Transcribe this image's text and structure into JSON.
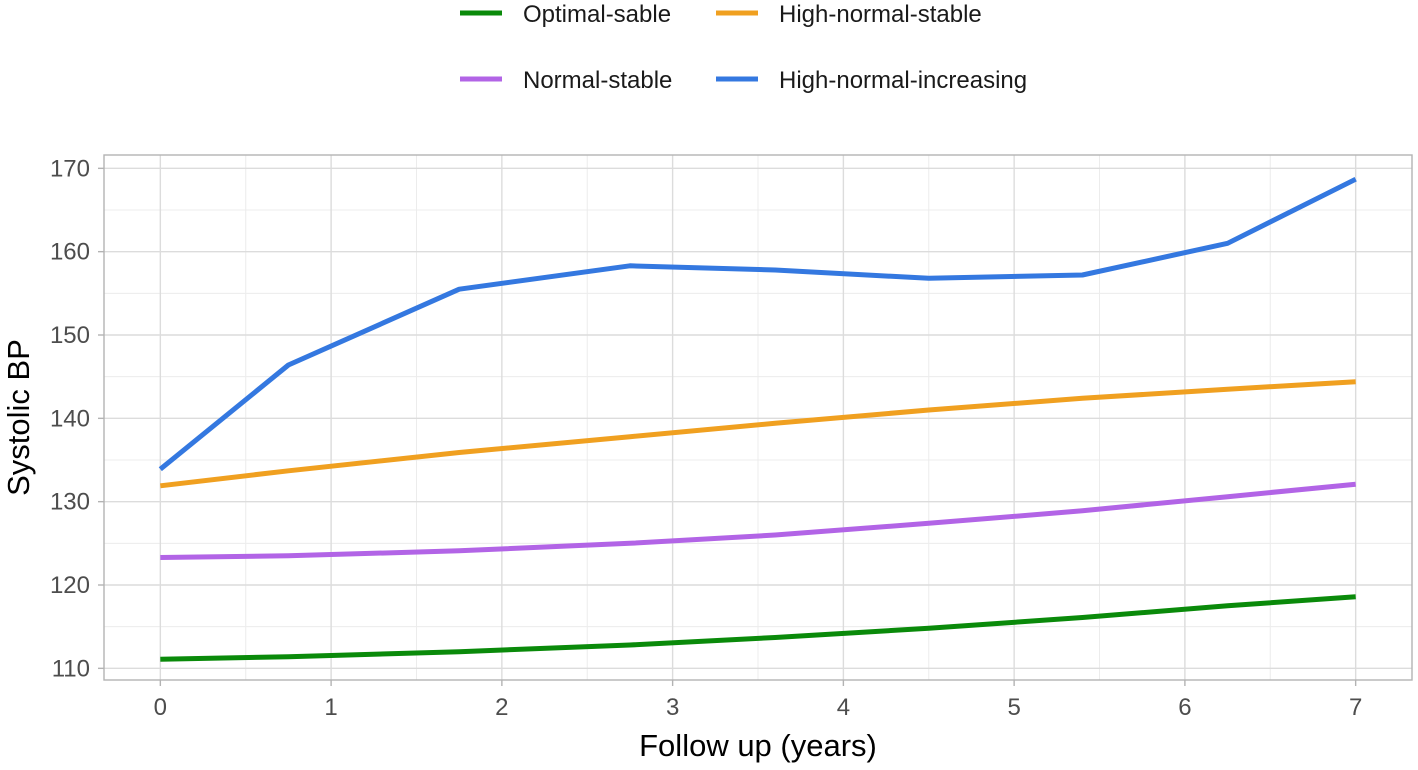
{
  "chart_data": {
    "type": "line",
    "xlabel": "Follow up (years)",
    "ylabel": "Systolic BP",
    "xlim": [
      -0.33,
      7.33
    ],
    "ylim": [
      108.6,
      171.6
    ],
    "x_ticks": [
      0,
      1,
      2,
      3,
      4,
      5,
      6,
      7
    ],
    "y_ticks": [
      110,
      120,
      130,
      140,
      150,
      160,
      170
    ],
    "grid": true,
    "legend_position": "top",
    "legend_order": [
      "Optimal-sable",
      "High-normal-stable",
      "Normal-stable",
      "High-normal-increasing"
    ],
    "series": [
      {
        "name": "Optimal-sable",
        "color": "#0a8a0a",
        "x": [
          0,
          0.75,
          1.75,
          2.75,
          3.6,
          4.5,
          5.4,
          6.25,
          7
        ],
        "y": [
          111.1,
          111.4,
          112.0,
          112.8,
          113.7,
          114.8,
          116.1,
          117.5,
          118.6
        ]
      },
      {
        "name": "High-normal-stable",
        "color": "#f0a020",
        "x": [
          0,
          0.75,
          1.75,
          2.75,
          3.6,
          4.5,
          5.4,
          6.25,
          7
        ],
        "y": [
          131.9,
          133.7,
          135.9,
          137.8,
          139.4,
          141.0,
          142.4,
          143.5,
          144.4
        ]
      },
      {
        "name": "Normal-stable",
        "color": "#b264e6",
        "x": [
          0,
          0.75,
          1.75,
          2.75,
          3.6,
          4.5,
          5.4,
          6.25,
          7
        ],
        "y": [
          123.3,
          123.5,
          124.1,
          125.0,
          126.0,
          127.4,
          128.9,
          130.6,
          132.1
        ]
      },
      {
        "name": "High-normal-increasing",
        "color": "#3478e0",
        "x": [
          0,
          0.75,
          1.75,
          2.75,
          3.6,
          4.5,
          5.4,
          6.25,
          7
        ],
        "y": [
          133.9,
          146.4,
          155.5,
          158.3,
          157.8,
          156.8,
          157.2,
          161.0,
          168.7
        ]
      }
    ]
  }
}
